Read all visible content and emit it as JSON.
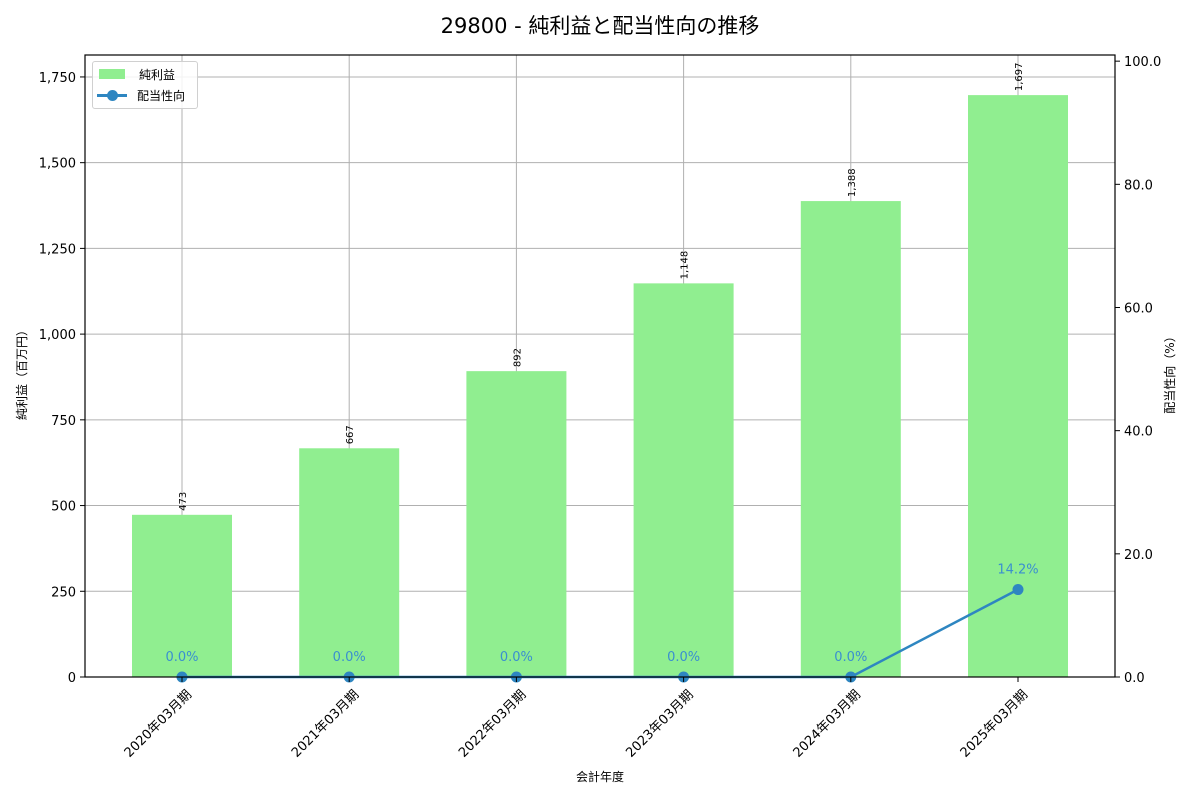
{
  "chart": {
    "title": "29800 - 純利益と配当性向の推移",
    "xlabel": "会計年度",
    "ylabel_left": "純利益（百万円）",
    "ylabel_right": "配当性向（%）",
    "legend": {
      "bar": "純利益",
      "line": "配当性向"
    }
  },
  "chart_data": {
    "type": "bar+line",
    "title": "29800 - 純利益と配当性向の推移",
    "xlabel": "会計年度",
    "categories": [
      "2020年03月期",
      "2021年03月期",
      "2022年03月期",
      "2023年03月期",
      "2024年03月期",
      "2025年03月期"
    ],
    "series": [
      {
        "name": "純利益",
        "type": "bar",
        "axis": "left",
        "color": "#90ee90",
        "values": [
          473,
          667,
          892,
          1148,
          1388,
          1697
        ],
        "labels": [
          "473",
          "667",
          "892",
          "1,148",
          "1,388",
          "1,697"
        ]
      },
      {
        "name": "配当性向",
        "type": "line",
        "axis": "right",
        "color": "#2e86c1",
        "values": [
          0.0,
          0.0,
          0.0,
          0.0,
          0.0,
          14.2
        ],
        "labels": [
          "0.0%",
          "0.0%",
          "0.0%",
          "0.0%",
          "0.0%",
          "14.2%"
        ]
      }
    ],
    "ylabel_left": "純利益（百万円）",
    "ylim_left": [
      0,
      1814
    ],
    "yticks_left": [
      "0",
      "250",
      "500",
      "750",
      "1,000",
      "1,250",
      "1,500",
      "1,750"
    ],
    "ylabel_right": "配当性向（%）",
    "ylim_right": [
      0,
      101
    ],
    "yticks_right": [
      "0.0",
      "20.0",
      "40.0",
      "60.0",
      "80.0",
      "100.0"
    ],
    "grid": true,
    "legend_position": "upper left"
  }
}
